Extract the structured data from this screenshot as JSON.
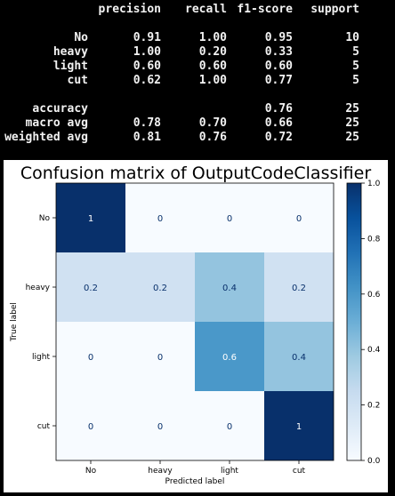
{
  "report": {
    "header": [
      "precision",
      "recall",
      "f1-score",
      "support"
    ],
    "rows": [
      {
        "label": "No",
        "precision": "0.91",
        "recall": "1.00",
        "f1": "0.95",
        "support": "10"
      },
      {
        "label": "heavy",
        "precision": "1.00",
        "recall": "0.20",
        "f1": "0.33",
        "support": "5"
      },
      {
        "label": "light",
        "precision": "0.60",
        "recall": "0.60",
        "f1": "0.60",
        "support": "5"
      },
      {
        "label": "cut",
        "precision": "0.62",
        "recall": "1.00",
        "f1": "0.77",
        "support": "5"
      }
    ],
    "summary": [
      {
        "label": "accuracy",
        "precision": "",
        "recall": "",
        "f1": "0.76",
        "support": "25"
      },
      {
        "label": "macro avg",
        "precision": "0.78",
        "recall": "0.70",
        "f1": "0.66",
        "support": "25"
      },
      {
        "label": "weighted avg",
        "precision": "0.81",
        "recall": "0.76",
        "f1": "0.72",
        "support": "25"
      }
    ]
  },
  "chart_data": {
    "type": "heatmap",
    "title": "Confusion matrix of OutputCodeClassifier",
    "xlabel": "Predicted label",
    "ylabel": "True label",
    "x_categories": [
      "No",
      "heavy",
      "light",
      "cut"
    ],
    "y_categories": [
      "No",
      "heavy",
      "light",
      "cut"
    ],
    "values": [
      [
        1,
        0,
        0,
        0
      ],
      [
        0.2,
        0.2,
        0.4,
        0.2
      ],
      [
        0,
        0,
        0.6,
        0.4
      ],
      [
        0,
        0,
        0,
        1
      ]
    ],
    "colormap": "Blues",
    "colorbar_range": [
      0.0,
      1.0
    ],
    "colorbar_ticks": [
      "0.0",
      "0.2",
      "0.4",
      "0.6",
      "0.8",
      "1.0"
    ]
  }
}
